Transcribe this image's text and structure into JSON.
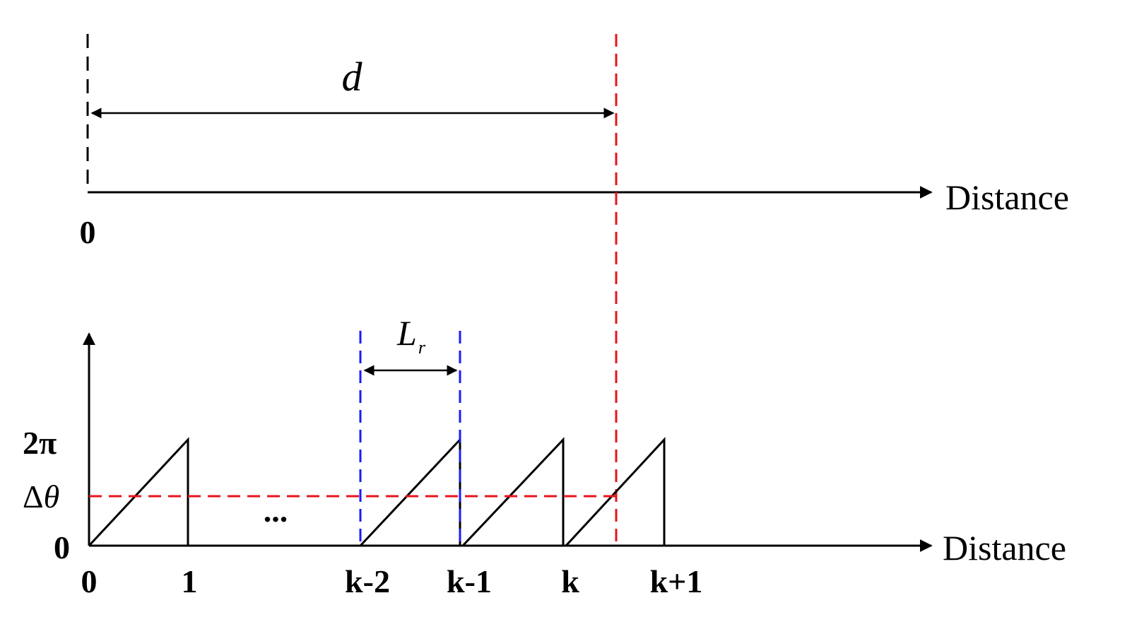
{
  "top_axis": {
    "origin_label": "0",
    "axis_label": "Distance",
    "distance_symbol": "d"
  },
  "bottom_axis": {
    "axis_label": "Distance",
    "y_ticks": {
      "two_pi": "2π",
      "delta_theta_prefix": "Δ",
      "delta_theta_symbol": "θ",
      "zero": "0"
    },
    "x_ticks": [
      "0",
      "1",
      "k-2",
      "k-1",
      "k",
      "k+1"
    ],
    "ellipsis": "...",
    "period_label_main": "L",
    "period_label_sub": "r"
  },
  "colors": {
    "axis": "#000000",
    "target_line": "#e8141b",
    "period_bounds": "#1a1aff"
  }
}
